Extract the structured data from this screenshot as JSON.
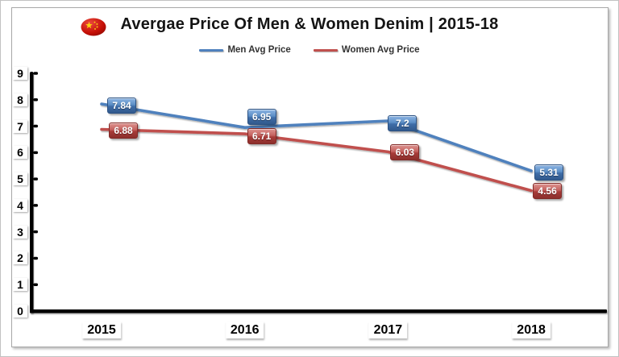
{
  "header": {
    "title": "Avergae Price Of Men & Women Denim | 2015-18",
    "flag_icon": "china-flag-icon"
  },
  "legend": {
    "items": [
      {
        "label": "Men Avg Price",
        "color": "#4F81BD"
      },
      {
        "label": "Women Avg Price",
        "color": "#C0504D"
      }
    ]
  },
  "chart_data": {
    "type": "line",
    "title": "Avergae Price Of Men & Women Denim | 2015-18",
    "categories": [
      "2015",
      "2016",
      "2017",
      "2018"
    ],
    "series": [
      {
        "name": "Men Avg Price",
        "color": "#4F81BD",
        "values": [
          7.84,
          6.95,
          7.2,
          5.31
        ],
        "labels": [
          "7.84",
          "6.95",
          "7.2",
          "5.31"
        ],
        "label_dx": [
          25,
          21,
          18,
          22
        ],
        "label_dy": [
          2,
          -13,
          3,
          2
        ]
      },
      {
        "name": "Women Avg Price",
        "color": "#C0504D",
        "values": [
          6.88,
          6.71,
          6.03,
          4.56
        ],
        "labels": [
          "6.88",
          "6.71",
          "6.03",
          "4.56"
        ],
        "label_dx": [
          27,
          21,
          21,
          20
        ],
        "label_dy": [
          2,
          3,
          1,
          0
        ]
      }
    ],
    "xlabel": "",
    "ylabel": "",
    "ylim": [
      0,
      9
    ],
    "yticks": [
      0,
      1,
      2,
      3,
      4,
      5,
      6,
      7,
      8,
      9
    ],
    "grid": false,
    "legend_position": "top",
    "data_labels": true
  }
}
